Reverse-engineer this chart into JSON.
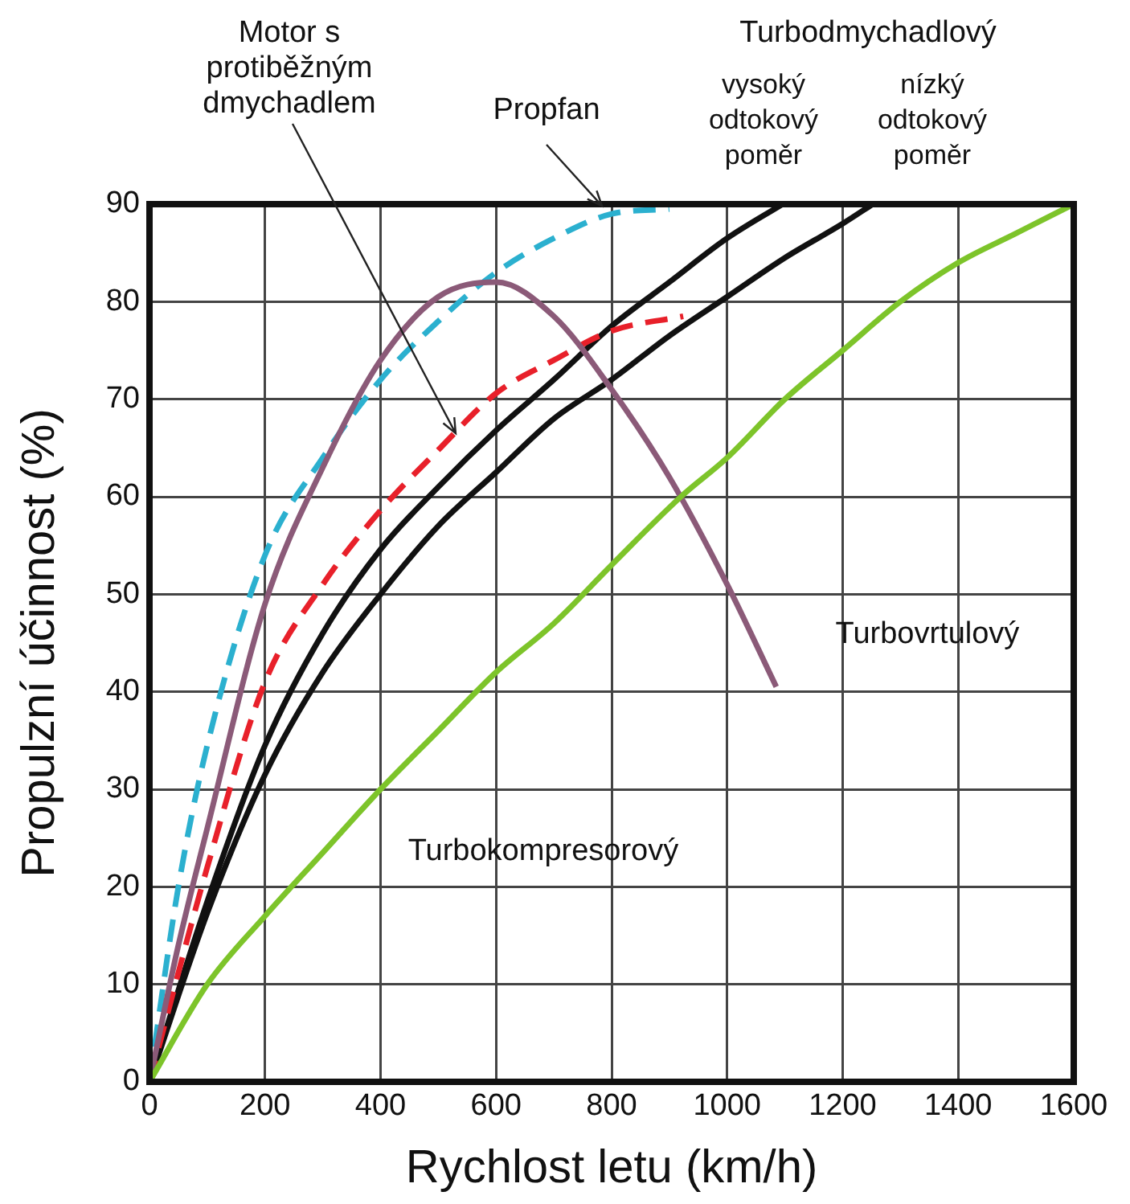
{
  "chart_data": {
    "type": "line",
    "xlabel": "Rychlost letu (km/h)",
    "ylabel": "Propulzní účinnost (%)",
    "xlim": [
      0,
      1600
    ],
    "xticks": [
      0,
      200,
      400,
      600,
      800,
      1000,
      1200,
      1400,
      1600
    ],
    "ylim": [
      0,
      90
    ],
    "yticks": [
      0,
      10,
      20,
      30,
      40,
      50,
      60,
      70,
      80,
      90
    ],
    "grid": true,
    "legend": false,
    "marker": "none",
    "annotations": [
      "Turbodmychadlový",
      {
        "text": "Motor s protiběžným dmychadlem",
        "x": 530,
        "y": 66.5
      }
    ],
    "series": [
      {
        "name": "Turbokompresorový",
        "color": "#7dc42a",
        "line_style": "solid",
        "x": [
          0,
          100,
          200,
          300,
          400,
          500,
          600,
          700,
          800,
          920,
          1000,
          1100,
          1200,
          1300,
          1400,
          1500,
          1600
        ],
        "values": [
          0,
          10,
          17,
          23.5,
          30,
          36,
          42,
          47,
          53,
          60,
          64,
          70,
          75,
          80,
          84,
          87,
          90
        ]
      },
      {
        "name": "Turbovrtulový",
        "color": "#8b5a78",
        "line_style": "solid",
        "x": [
          0,
          50,
          100,
          200,
          300,
          400,
          500,
          600,
          700,
          800,
          900,
          1000,
          1085
        ],
        "values": [
          0,
          14,
          26,
          49,
          63,
          74,
          80.5,
          82,
          78.5,
          71,
          62,
          51,
          40.5
        ]
      },
      {
        "name": "Propfan",
        "color": "#2bb0cf",
        "line_style": "dashed",
        "x": [
          0,
          50,
          100,
          200,
          300,
          400,
          500,
          600,
          700,
          800,
          900
        ],
        "values": [
          0,
          20,
          34.5,
          54,
          64,
          72,
          78,
          83,
          86.5,
          89,
          89.5
        ]
      },
      {
        "color": "#e8202a",
        "line_style": "dashed",
        "x": [
          0,
          100,
          200,
          300,
          400,
          500,
          600,
          700,
          800,
          924
        ],
        "values": [
          0,
          22,
          41,
          51,
          58.6,
          64.8,
          70.6,
          74,
          77,
          78.5
        ]
      },
      {
        "name": "vysoký odtokový poměr",
        "color": "#111111",
        "line_style": "solid",
        "x": [
          0,
          100,
          200,
          300,
          400,
          500,
          600,
          700,
          800,
          900,
          1000,
          1096
        ],
        "values": [
          0,
          18.5,
          34.5,
          46,
          54.6,
          61,
          66.8,
          72,
          77.5,
          82,
          86.5,
          90
        ]
      },
      {
        "name": "nízký odtokový poměr",
        "color": "#111111",
        "line_style": "solid",
        "x": [
          0,
          100,
          200,
          300,
          400,
          500,
          600,
          700,
          800,
          900,
          1000,
          1100,
          1200,
          1252
        ],
        "values": [
          0,
          17.3,
          31.5,
          42,
          50,
          57,
          62.5,
          68,
          72,
          76.5,
          80.5,
          84.5,
          88,
          90
        ]
      }
    ]
  }
}
